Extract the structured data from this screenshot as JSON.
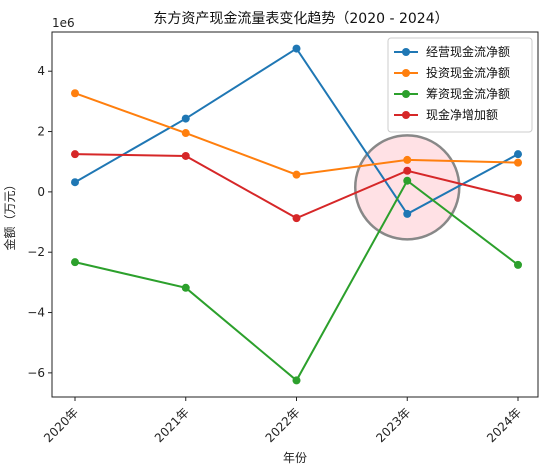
{
  "chart_data": {
    "type": "line",
    "title": "东方资产现金流量表变化趋势（2020 - 2024）",
    "xlabel": "年份",
    "ylabel": "金额（万元）",
    "y_offset_label": "1e6",
    "categories": [
      "2020年",
      "2021年",
      "2022年",
      "2023年",
      "2024年"
    ],
    "y_tick_labels": [
      {
        "value": 4000000,
        "label": "4"
      },
      {
        "value": 2000000,
        "label": "2"
      },
      {
        "value": 0,
        "label": "0"
      },
      {
        "value": -2000000,
        "label": "−2"
      },
      {
        "value": -4000000,
        "label": "−4"
      },
      {
        "value": -6000000,
        "label": "−6"
      }
    ],
    "ylim": [
      -6800000,
      5300000
    ],
    "grid": false,
    "legend_position": "top-right",
    "series": [
      {
        "name": "经营现金流净额",
        "color": "#1f77b4",
        "values": [
          320000,
          2430000,
          4750000,
          -730000,
          1250000
        ]
      },
      {
        "name": "投资现金流净额",
        "color": "#ff7f0e",
        "values": [
          3270000,
          1950000,
          570000,
          1060000,
          970000
        ]
      },
      {
        "name": "筹资现金流净额",
        "color": "#2ca02c",
        "values": [
          -2330000,
          -3180000,
          -6250000,
          370000,
          -2420000
        ]
      },
      {
        "name": "现金净增加额",
        "color": "#d62728",
        "values": [
          1250000,
          1190000,
          -870000,
          700000,
          -200000
        ]
      }
    ],
    "annotation": {
      "type": "circle",
      "category": "2023年",
      "value": 150000
    }
  }
}
